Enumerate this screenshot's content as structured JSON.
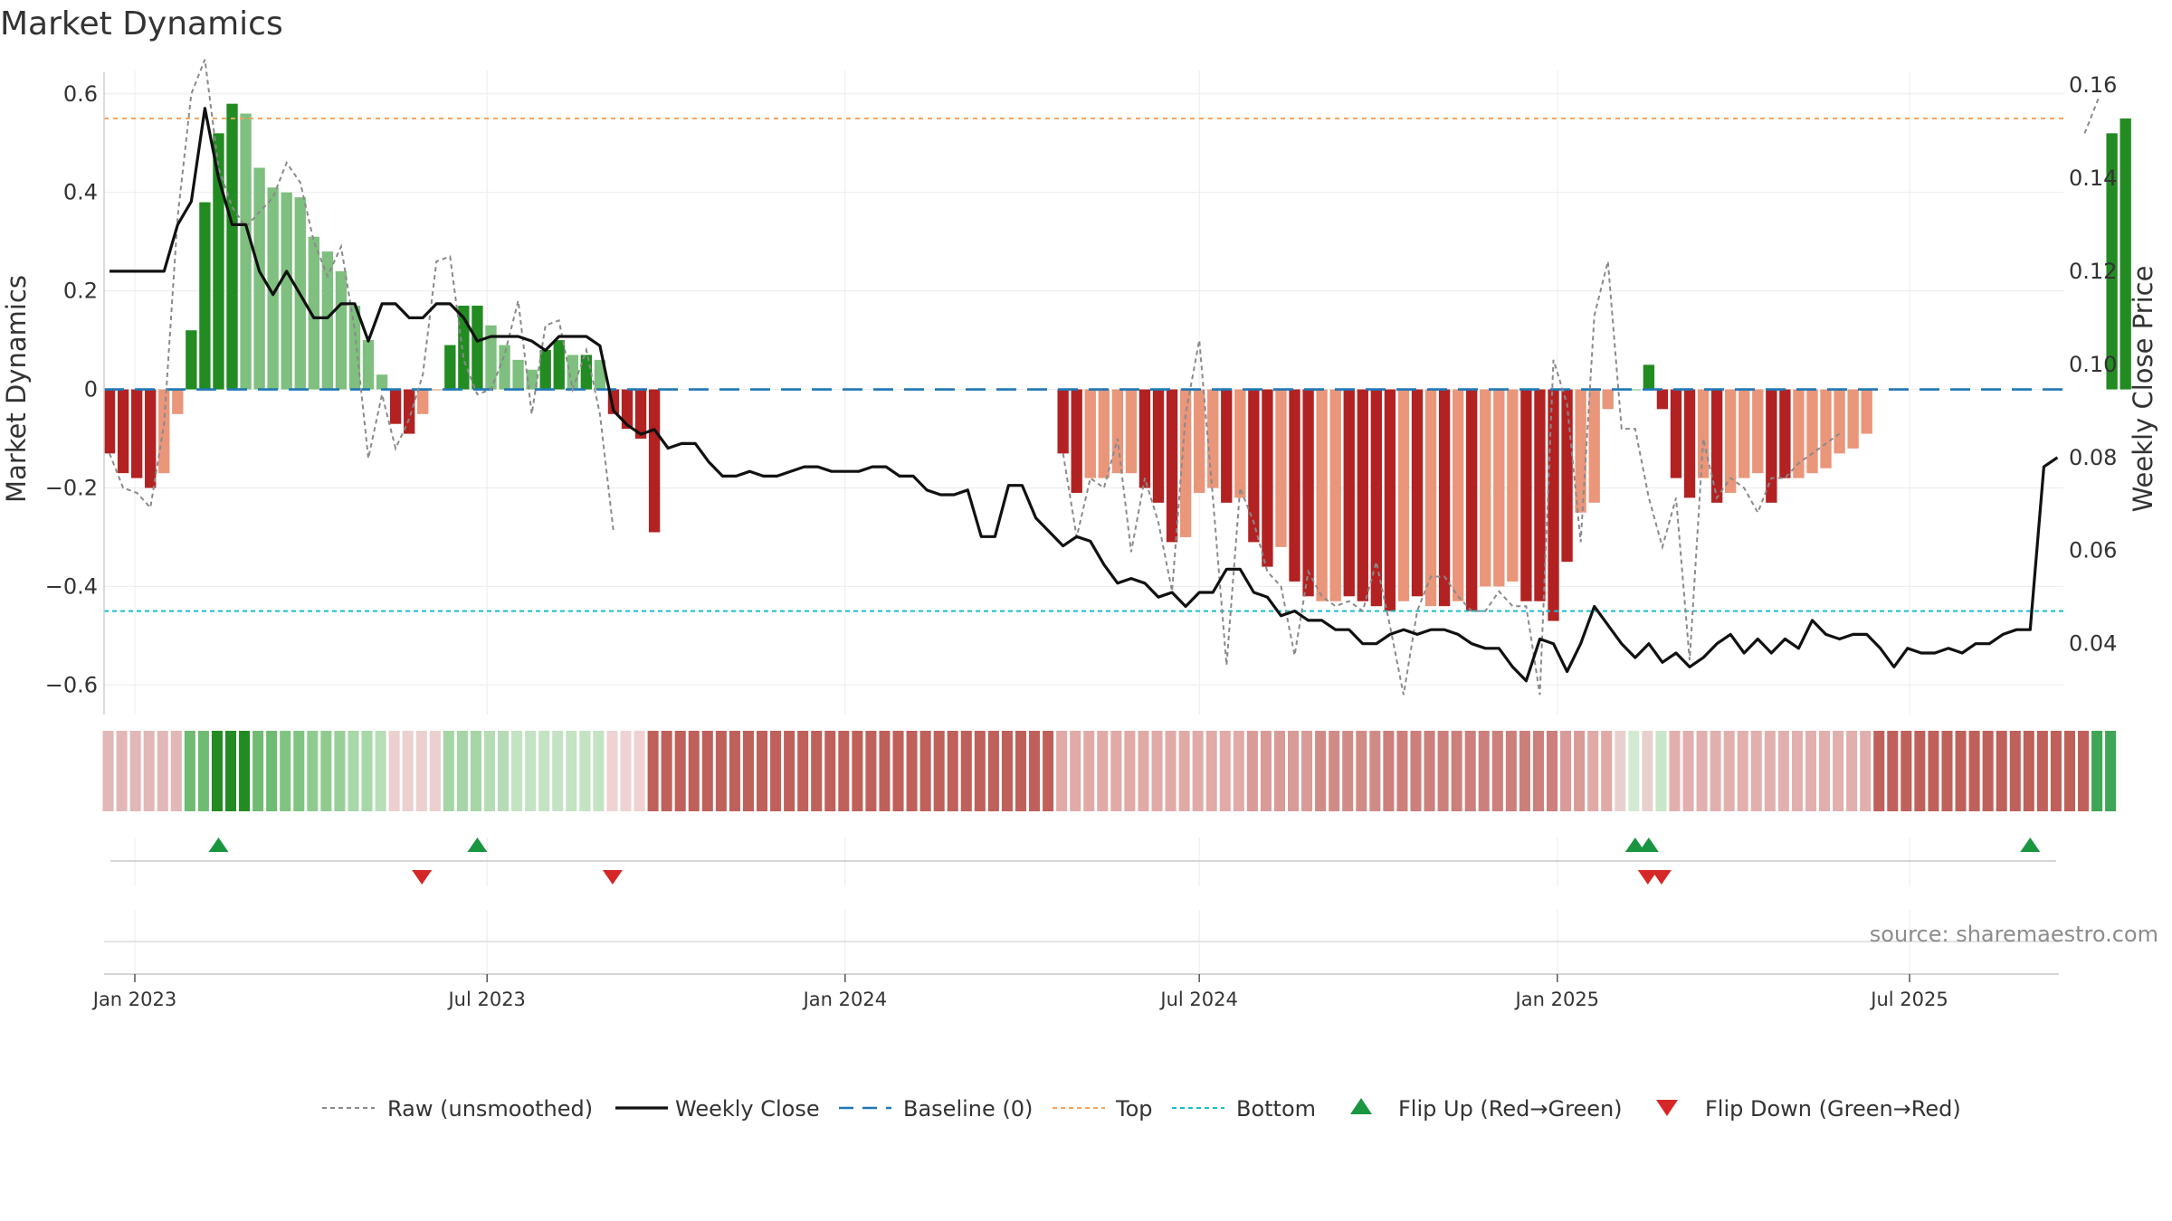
{
  "title": "Market Dynamics",
  "source": "source: sharemaestro.com",
  "colors": {
    "strong_green": "#228b22",
    "light_green": "#7fbf7f",
    "strong_red": "#b22222",
    "light_red": "#e9967a",
    "baseline": "#1f77b4",
    "top": "#f4a460",
    "bottom": "#17becf",
    "flip_up": "#1a9641",
    "flip_down": "#d62728"
  },
  "chart_data": {
    "type": "bar",
    "title": "Market Dynamics",
    "left_axis": {
      "label": "Market Dynamics",
      "ylim": [
        -0.66,
        0.64
      ],
      "ticks": [
        0.6,
        0.4,
        0.2,
        0,
        -0.2,
        -0.4,
        -0.6
      ],
      "tick_labels": [
        "0.6",
        "0.4",
        "0.2",
        "0",
        "−0.2",
        "−0.4",
        "−0.6"
      ]
    },
    "right_axis": {
      "label": "Weekly Close Price",
      "ylim": [
        0.02478,
        0.16234
      ],
      "ticks": [
        0.16,
        0.14,
        0.12,
        0.1,
        0.08,
        0.06,
        0.04
      ],
      "tick_labels": [
        "0.16",
        "0.14",
        "0.12",
        "0.10",
        "0.08",
        "0.06",
        "0.04"
      ]
    },
    "x_axis": {
      "start": "2022-12-19",
      "step_days": 7,
      "ticks": [
        "2023-01-01",
        "2023-07-01",
        "2024-01-01",
        "2024-07-01",
        "2025-01-01",
        "2025-07-01"
      ],
      "tick_labels": [
        "Jan 2023",
        "Jul 2023",
        "Jan 2024",
        "Jul 2024",
        "Jan 2025",
        "Jul 2025"
      ]
    },
    "grid": true,
    "top_level": 0.55,
    "bottom_level": -0.45,
    "baseline": 0,
    "bars": {
      "name": "Market Dynamics",
      "values": [
        -0.13,
        -0.17,
        -0.18,
        -0.2,
        -0.17,
        -0.05,
        0.12,
        0.38,
        0.52,
        0.58,
        0.56,
        0.45,
        0.41,
        0.4,
        0.39,
        0.31,
        0.28,
        0.24,
        0.17,
        0.1,
        0.03,
        -0.07,
        -0.09,
        -0.05,
        0.0,
        0.09,
        0.17,
        0.17,
        0.13,
        0.09,
        0.06,
        0.04,
        0.08,
        0.1,
        0.07,
        0.07,
        0.06,
        -0.05,
        -0.08,
        -0.1,
        -0.29,
        null,
        null,
        null,
        null,
        null,
        null,
        null,
        null,
        null,
        null,
        null,
        null,
        null,
        null,
        null,
        null,
        null,
        null,
        null,
        null,
        null,
        null,
        null,
        null,
        null,
        null,
        null,
        null,
        null,
        -0.13,
        -0.21,
        -0.18,
        -0.18,
        -0.17,
        -0.17,
        -0.2,
        -0.23,
        -0.31,
        -0.3,
        -0.21,
        -0.2,
        -0.23,
        -0.22,
        -0.31,
        -0.36,
        -0.32,
        -0.39,
        -0.42,
        -0.43,
        -0.43,
        -0.42,
        -0.43,
        -0.44,
        -0.45,
        -0.43,
        -0.42,
        -0.44,
        -0.44,
        -0.43,
        -0.45,
        -0.4,
        -0.4,
        -0.39,
        -0.43,
        -0.43,
        -0.47,
        -0.35,
        -0.25,
        -0.23,
        -0.04,
        0.0,
        0.0,
        0.05,
        -0.04,
        -0.18,
        -0.22,
        -0.18,
        -0.23,
        -0.21,
        -0.18,
        -0.17,
        -0.23,
        -0.18,
        -0.18,
        -0.17,
        -0.16,
        -0.13,
        -0.12,
        -0.09,
        null,
        null,
        null,
        null,
        null,
        null,
        null,
        null,
        null,
        null,
        null,
        null,
        null,
        null,
        null,
        null,
        null,
        0.52,
        0.55
      ],
      "colors": [
        "SR",
        "SR",
        "SR",
        "SR",
        "LR",
        "LR",
        "SG",
        "SG",
        "SG",
        "SG",
        "LG",
        "LG",
        "LG",
        "LG",
        "LG",
        "LG",
        "LG",
        "LG",
        "LG",
        "LG",
        "LG",
        "SR",
        "SR",
        "LR",
        "LR",
        "SG",
        "SG",
        "SG",
        "LG",
        "LG",
        "LG",
        "LG",
        "SG",
        "SG",
        "LG",
        "SG",
        "LG",
        "SR",
        "SR",
        "SR",
        "SR",
        null,
        null,
        null,
        null,
        null,
        null,
        null,
        null,
        null,
        null,
        null,
        null,
        null,
        null,
        null,
        null,
        null,
        null,
        null,
        null,
        null,
        null,
        null,
        null,
        null,
        null,
        null,
        null,
        null,
        "SR",
        "SR",
        "LR",
        "LR",
        "LR",
        "LR",
        "SR",
        "SR",
        "SR",
        "LR",
        "LR",
        "LR",
        "SR",
        "LR",
        "SR",
        "SR",
        "LR",
        "SR",
        "SR",
        "LR",
        "LR",
        "SR",
        "SR",
        "SR",
        "SR",
        "LR",
        "SR",
        "LR",
        "SR",
        "LR",
        "SR",
        "LR",
        "LR",
        "LR",
        "SR",
        "SR",
        "SR",
        "SR",
        "LR",
        "LR",
        "LR",
        "LG",
        "LG",
        "SG",
        "SR",
        "SR",
        "SR",
        "LR",
        "SR",
        "LR",
        "LR",
        "LR",
        "SR",
        "SR",
        "LR",
        "LR",
        "LR",
        "LR",
        "LR",
        "LR",
        null,
        null,
        null,
        null,
        null,
        null,
        null,
        null,
        null,
        null,
        null,
        null,
        null,
        null,
        null,
        null,
        null,
        "SG",
        "SG"
      ]
    },
    "series": [
      {
        "name": "Raw (unsmoothed)",
        "axis": "left",
        "values": [
          -0.13,
          -0.2,
          -0.21,
          -0.24,
          -0.07,
          0.35,
          0.6,
          0.67,
          0.45,
          0.37,
          0.33,
          0.36,
          0.39,
          0.46,
          0.42,
          0.3,
          0.23,
          0.29,
          0.12,
          -0.14,
          -0.01,
          -0.12,
          -0.06,
          0.03,
          0.26,
          0.27,
          0.06,
          -0.01,
          0.0,
          0.07,
          0.18,
          -0.05,
          0.13,
          0.14,
          0.0,
          0.08,
          -0.05,
          -0.29,
          null,
          null,
          null,
          null,
          null,
          null,
          null,
          null,
          null,
          null,
          null,
          null,
          null,
          null,
          null,
          null,
          null,
          null,
          null,
          null,
          null,
          null,
          null,
          null,
          null,
          null,
          null,
          null,
          null,
          null,
          null,
          null,
          -0.13,
          -0.3,
          -0.18,
          -0.2,
          -0.1,
          -0.33,
          -0.18,
          -0.27,
          -0.41,
          -0.05,
          0.1,
          -0.22,
          -0.56,
          -0.2,
          -0.27,
          -0.37,
          -0.4,
          -0.54,
          -0.37,
          -0.42,
          -0.44,
          -0.43,
          -0.45,
          -0.35,
          -0.48,
          -0.62,
          -0.45,
          -0.38,
          -0.38,
          -0.42,
          -0.45,
          -0.45,
          -0.41,
          -0.44,
          -0.44,
          -0.62,
          0.06,
          -0.03,
          -0.31,
          0.15,
          0.26,
          -0.08,
          -0.08,
          -0.22,
          -0.32,
          -0.22,
          -0.55,
          -0.1,
          -0.22,
          -0.18,
          -0.2,
          -0.25,
          -0.18,
          -0.18,
          -0.15,
          -0.13,
          -0.11,
          -0.09,
          null,
          null,
          null,
          null,
          null,
          null,
          null,
          null,
          null,
          null,
          null,
          null,
          null,
          null,
          null,
          null,
          null,
          0.52,
          0.59
        ]
      },
      {
        "name": "Weekly Close",
        "axis": "right",
        "values": [
          0.12,
          0.12,
          0.12,
          0.12,
          0.12,
          0.13,
          0.135,
          0.155,
          0.14,
          0.13,
          0.13,
          0.12,
          0.115,
          0.12,
          0.115,
          0.11,
          0.11,
          0.113,
          0.113,
          0.105,
          0.113,
          0.113,
          0.11,
          0.11,
          0.113,
          0.113,
          0.11,
          0.105,
          0.106,
          0.106,
          0.106,
          0.105,
          0.103,
          0.106,
          0.106,
          0.106,
          0.104,
          0.09,
          0.087,
          0.085,
          0.086,
          0.082,
          0.083,
          0.083,
          0.079,
          0.076,
          0.076,
          0.077,
          0.076,
          0.076,
          0.077,
          0.078,
          0.078,
          0.077,
          0.077,
          0.077,
          0.078,
          0.078,
          0.076,
          0.076,
          0.073,
          0.072,
          0.072,
          0.073,
          0.063,
          0.063,
          0.074,
          0.074,
          0.067,
          0.064,
          0.061,
          0.063,
          0.062,
          0.057,
          0.053,
          0.054,
          0.053,
          0.05,
          0.051,
          0.048,
          0.051,
          0.051,
          0.056,
          0.056,
          0.051,
          0.05,
          0.046,
          0.047,
          0.045,
          0.045,
          0.043,
          0.043,
          0.04,
          0.04,
          0.042,
          0.043,
          0.042,
          0.043,
          0.043,
          0.042,
          0.04,
          0.039,
          0.039,
          0.035,
          0.032,
          0.041,
          0.04,
          0.034,
          0.04,
          0.048,
          0.044,
          0.04,
          0.037,
          0.04,
          0.036,
          0.038,
          0.035,
          0.037,
          0.04,
          0.042,
          0.038,
          0.041,
          0.038,
          0.041,
          0.039,
          0.045,
          0.042,
          0.041,
          0.042,
          0.042,
          0.039,
          0.035,
          0.039,
          0.038,
          0.038,
          0.039,
          0.038,
          0.04,
          0.04,
          0.042,
          0.043,
          0.043,
          0.078,
          0.08
        ]
      },
      {
        "name": "Baseline (0)",
        "axis": "left",
        "value": 0
      },
      {
        "name": "Top",
        "axis": "left",
        "value": 0.55
      },
      {
        "name": "Bottom",
        "axis": "left",
        "value": -0.45
      }
    ],
    "regime_strip": [
      "#e2b7b7",
      "#e2b7b7",
      "#e2b7b7",
      "#e2b7b7",
      "#e2b7b7",
      "#e2b7b7",
      "#6fbb72",
      "#6fbb72",
      "#228b22",
      "#228b22",
      "#228b22",
      "#6fbb72",
      "#6fbb72",
      "#7fc480",
      "#7fc480",
      "#8fcb8f",
      "#8fcb8f",
      "#98cf98",
      "#a8d7a8",
      "#a8d7a8",
      "#b7deb7",
      "#eccfcf",
      "#eccfcf",
      "#eccfcf",
      "#eccfcf",
      "#a6d5a6",
      "#a6d5a6",
      "#a6d5a6",
      "#b5dcb5",
      "#b5dcb5",
      "#c3e3c3",
      "#c3e3c3",
      "#c3e3c3",
      "#c3e3c3",
      "#c3e3c3",
      "#c3e3c3",
      "#c3e3c3",
      "#efd2d2",
      "#efd2d2",
      "#efd2d2",
      "#c0605a",
      "#c0605a",
      "#c0605a",
      "#c0605a",
      "#c0605a",
      "#c0605a",
      "#c0605a",
      "#c0605a",
      "#c0605a",
      "#c0605a",
      "#c0605a",
      "#c0605a",
      "#c0605a",
      "#c0605a",
      "#c0605a",
      "#c0605a",
      "#c0605a",
      "#c0605a",
      "#c0605a",
      "#c0605a",
      "#c0605a",
      "#c0605a",
      "#c0605a",
      "#c0605a",
      "#c0605a",
      "#c0605a",
      "#c0605a",
      "#c0605a",
      "#c0605a",
      "#c0605a",
      "#e1aaa7",
      "#e1aaa7",
      "#e1aaa7",
      "#e1aaa7",
      "#e1aaa7",
      "#e1aaa7",
      "#e1aaa7",
      "#e1aaa7",
      "#e1aaa7",
      "#e1aaa7",
      "#e1aaa7",
      "#e1aaa7",
      "#e1aaa7",
      "#e1aaa7",
      "#d99b98",
      "#d99b98",
      "#d99b98",
      "#d99b98",
      "#d99b98",
      "#d18b87",
      "#d18b87",
      "#d18b87",
      "#d18b87",
      "#d18b87",
      "#cc7f7b",
      "#cc7f7b",
      "#cc7f7b",
      "#cc7f7b",
      "#cc7f7b",
      "#cc7f7b",
      "#cc7f7b",
      "#cc7f7b",
      "#cc7f7b",
      "#cc7f7b",
      "#cc7f7b",
      "#cc7f7b",
      "#cc7f7b",
      "#d99b98",
      "#d99b98",
      "#e1aaa7",
      "#e1aaa7",
      "#e8d0cf",
      "#d2ead2",
      "#e8d0cf",
      "#c8e6c8",
      "#e1b0ae",
      "#e1b0ae",
      "#e1b0ae",
      "#e1b0ae",
      "#e1b0ae",
      "#e1b0ae",
      "#e1b0ae",
      "#e1b0ae",
      "#e1b0ae",
      "#e1b0ae",
      "#e1b0ae",
      "#e1b0ae",
      "#e1b0ae",
      "#e1b0ae",
      "#e1b0ae",
      "#c0605a",
      "#c0605a",
      "#c0605a",
      "#c0605a",
      "#c0605a",
      "#c0605a",
      "#c0605a",
      "#c0605a",
      "#c0605a",
      "#c0605a",
      "#c0605a",
      "#c0605a",
      "#c0605a",
      "#c0605a",
      "#c0605a",
      "#c0605a",
      "#3fa655",
      "#3fa655"
    ],
    "flips": {
      "up": [
        "2023-02-13",
        "2023-06-26",
        "2025-02-10",
        "2025-02-17",
        "2025-09-01"
      ],
      "down": [
        "2023-05-22",
        "2023-08-28",
        "2025-02-10",
        "2025-02-17"
      ]
    },
    "legend": {
      "placement": "bottom",
      "entries": [
        "Raw (unsmoothed)",
        "Weekly Close",
        "Baseline (0)",
        "Top",
        "Bottom",
        "Flip Up (Red→Green)",
        "Flip Down (Green→Red)"
      ]
    }
  }
}
